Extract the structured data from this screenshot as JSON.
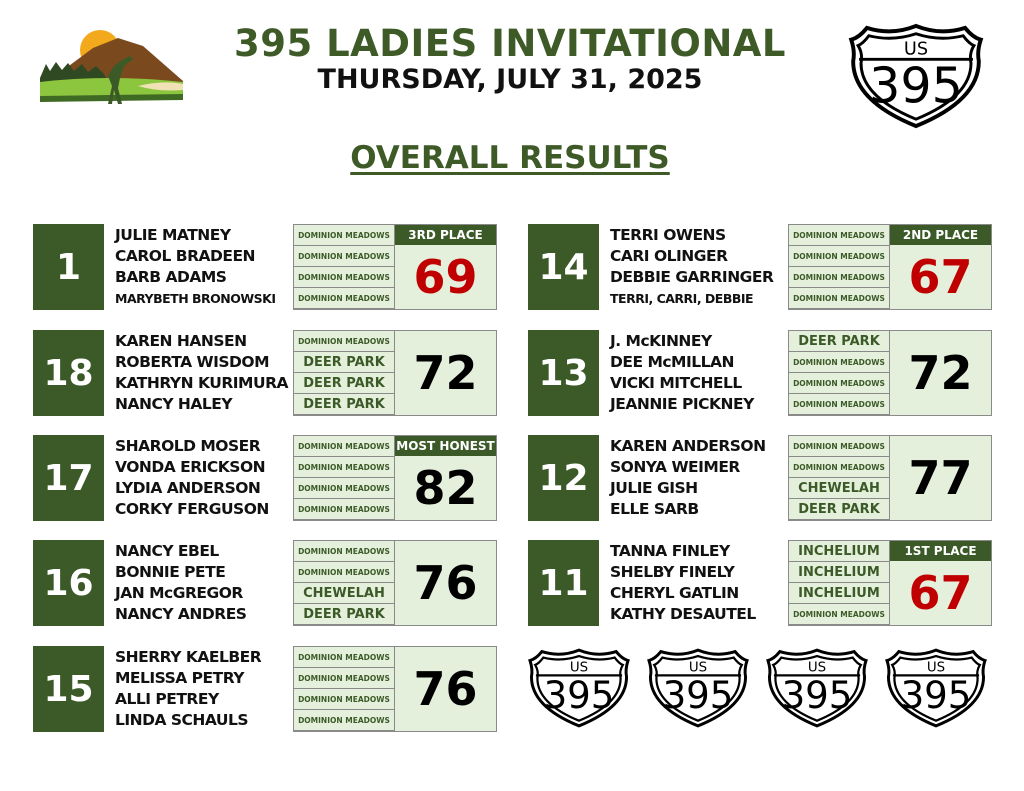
{
  "header": {
    "title": "395 LADIES INVITATIONAL",
    "date": "THURSDAY, JULY 31, 2025",
    "subtitle": "OVERALL RESULTS"
  },
  "shield": {
    "top_text": "US",
    "number": "395"
  },
  "colors": {
    "green": "#3c5a27",
    "winner_red": "#c00000",
    "cell_bg": "#e4f0dc"
  },
  "left_column": [
    {
      "team": "1",
      "players": [
        "JULIE MATNEY",
        "CAROL BRADEEN",
        "BARB ADAMS",
        "MARYBETH BRONOWSKI"
      ],
      "courses": [
        "DOMINION MEADOWS",
        "DOMINION MEADOWS",
        "DOMINION MEADOWS",
        "DOMINION MEADOWS"
      ],
      "award": "3RD PLACE",
      "score": "69",
      "highlight": true
    },
    {
      "team": "18",
      "players": [
        "KAREN HANSEN",
        "ROBERTA WISDOM",
        "KATHRYN KURIMURA",
        "NANCY HALEY"
      ],
      "courses": [
        "DOMINION MEADOWS",
        "DEER PARK",
        "DEER PARK",
        "DEER PARK"
      ],
      "award": "",
      "score": "72",
      "highlight": false
    },
    {
      "team": "17",
      "players": [
        "SHAROLD MOSER",
        "VONDA ERICKSON",
        "LYDIA ANDERSON",
        "CORKY FERGUSON"
      ],
      "courses": [
        "DOMINION MEADOWS",
        "DOMINION MEADOWS",
        "DOMINION MEADOWS",
        "DOMINION MEADOWS"
      ],
      "award": "MOST HONEST",
      "score": "82",
      "highlight": false
    },
    {
      "team": "16",
      "players": [
        "NANCY EBEL",
        "BONNIE PETE",
        "JAN McGREGOR",
        "NANCY ANDRES"
      ],
      "courses": [
        "DOMINION MEADOWS",
        "DOMINION MEADOWS",
        "CHEWELAH",
        "DEER PARK"
      ],
      "award": "",
      "score": "76",
      "highlight": false
    },
    {
      "team": "15",
      "players": [
        "SHERRY KAELBER",
        "MELISSA PETRY",
        "ALLI PETREY",
        "LINDA SCHAULS"
      ],
      "courses": [
        "DOMINION MEADOWS",
        "DOMINION MEADOWS",
        "DOMINION MEADOWS",
        "DOMINION MEADOWS"
      ],
      "award": "",
      "score": "76",
      "highlight": false
    }
  ],
  "right_column": [
    {
      "team": "14",
      "players": [
        "TERRI OWENS",
        "CARI OLINGER",
        "DEBBIE GARRINGER",
        "TERRI, CARRI, DEBBIE"
      ],
      "courses": [
        "DOMINION MEADOWS",
        "DOMINION MEADOWS",
        "DOMINION MEADOWS",
        "DOMINION MEADOWS"
      ],
      "award": "2ND PLACE",
      "score": "67",
      "highlight": true
    },
    {
      "team": "13",
      "players": [
        "J. McKINNEY",
        "DEE McMILLAN",
        "VICKI MITCHELL",
        "JEANNIE PICKNEY"
      ],
      "courses": [
        "DEER PARK",
        "DOMINION MEADOWS",
        "DOMINION MEADOWS",
        "DOMINION MEADOWS"
      ],
      "award": "",
      "score": "72",
      "highlight": false
    },
    {
      "team": "12",
      "players": [
        "KAREN ANDERSON",
        "SONYA WEIMER",
        "JULIE GISH",
        "ELLE SARB"
      ],
      "courses": [
        "DOMINION MEADOWS",
        "DOMINION MEADOWS",
        "CHEWELAH",
        "DEER PARK"
      ],
      "award": "",
      "score": "77",
      "highlight": false
    },
    {
      "team": "11",
      "players": [
        "TANNA FINLEY",
        "SHELBY FINELY",
        "CHERYL GATLIN",
        "KATHY DESAUTEL"
      ],
      "courses": [
        "INCHELIUM",
        "INCHELIUM",
        "INCHELIUM",
        "DOMINION MEADOWS"
      ],
      "award": "1ST PLACE",
      "score": "67",
      "highlight": true
    }
  ]
}
